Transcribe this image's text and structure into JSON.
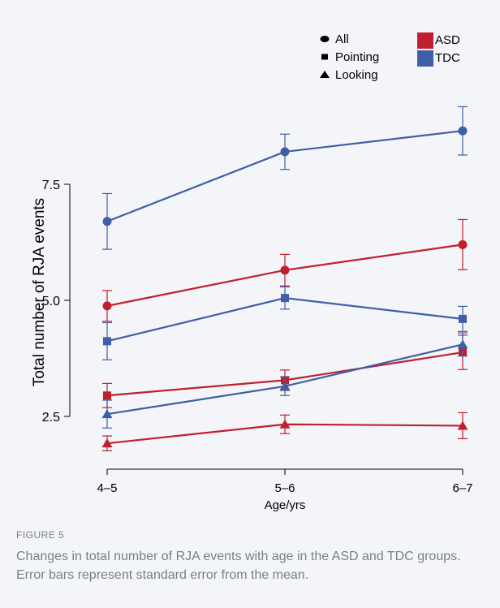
{
  "figure": {
    "label": "FIGURE 5",
    "caption": "Changes in total number of RJA events with age in the ASD and TDC groups. Error bars represent standard error from the mean."
  },
  "chart_data": {
    "type": "line",
    "title": "",
    "xlabel": "Age/yrs",
    "ylabel": "Total number of RJA events",
    "categories": [
      "4–5",
      "5–6",
      "6–7"
    ],
    "yticks": [
      "2.5",
      "5.0",
      "7.5"
    ],
    "ytick_values": [
      2.5,
      5.0,
      7.5
    ],
    "ylim": [
      1.2,
      9.2
    ],
    "grid": false,
    "legend_shapes": {
      "placement": "top-center",
      "entries": [
        {
          "label": "All",
          "marker": "circle"
        },
        {
          "label": "Pointing",
          "marker": "square"
        },
        {
          "label": "Looking",
          "marker": "triangle"
        }
      ]
    },
    "legend_groups": {
      "placement": "top-right",
      "entries": [
        {
          "label": "ASD",
          "color": "#c0202e"
        },
        {
          "label": "TDC",
          "color": "#3f5ea8"
        }
      ]
    },
    "series": [
      {
        "group": "TDC",
        "measure": "All",
        "marker": "circle",
        "color": "#3f5ea8",
        "values": [
          6.7,
          8.2,
          8.65
        ],
        "error": [
          0.6,
          0.38,
          0.52
        ]
      },
      {
        "group": "ASD",
        "measure": "All",
        "marker": "circle",
        "color": "#c0202e",
        "values": [
          4.88,
          5.65,
          6.2
        ],
        "error": [
          0.33,
          0.34,
          0.54
        ]
      },
      {
        "group": "TDC",
        "measure": "Pointing",
        "marker": "square",
        "color": "#3f5ea8",
        "values": [
          4.12,
          5.05,
          4.6
        ],
        "error": [
          0.4,
          0.24,
          0.27
        ]
      },
      {
        "group": "ASD",
        "measure": "Pointing",
        "marker": "square",
        "color": "#c0202e",
        "values": [
          2.95,
          3.28,
          3.88
        ],
        "error": [
          0.26,
          0.22,
          0.37
        ]
      },
      {
        "group": "TDC",
        "measure": "Looking",
        "marker": "triangle",
        "color": "#3f5ea8",
        "values": [
          2.55,
          3.15,
          4.05
        ],
        "error": [
          0.3,
          0.2,
          0.25
        ]
      },
      {
        "group": "ASD",
        "measure": "Looking",
        "marker": "triangle",
        "color": "#c0202e",
        "values": [
          1.92,
          2.33,
          2.3
        ],
        "error": [
          0.16,
          0.2,
          0.28
        ]
      }
    ]
  }
}
